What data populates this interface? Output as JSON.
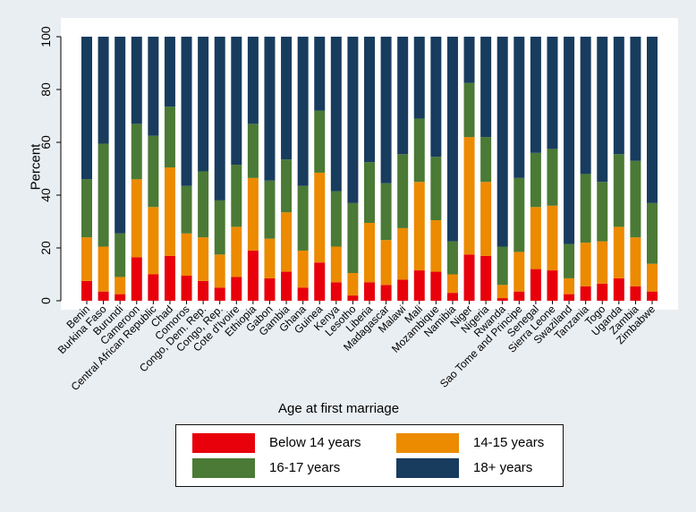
{
  "chart_data": {
    "type": "bar",
    "stacked": true,
    "title": "",
    "xlabel": "Age at first marriage",
    "ylabel": "Percent",
    "ylim": [
      0,
      100
    ],
    "yticks": [
      0,
      20,
      40,
      60,
      80,
      100
    ],
    "grid": false,
    "legend_position": "bottom",
    "categories": [
      "Benin",
      "Burkina Faso",
      "Burundi",
      "Cameroon",
      "Central African Republic",
      "Chad",
      "Comoros",
      "Congo, Dem. Rep.",
      "Congo, Rep.",
      "Cote d'Ivoire",
      "Ethiopia",
      "Gabon",
      "Gambia",
      "Ghana",
      "Guinea",
      "Kenya",
      "Lesotho",
      "Liberia",
      "Madagascar",
      "Malawi",
      "Mali",
      "Mozambique",
      "Namibia",
      "Niger",
      "Nigeria",
      "Rwanda",
      "Sao Tome and Principe",
      "Senegal",
      "Sierra Leone",
      "Swaziland",
      "Tanzania",
      "Togo",
      "Uganda",
      "Zambia",
      "Zimbabwe"
    ],
    "series": [
      {
        "name": "Below 14 years",
        "color": "#e8000b",
        "values": [
          7.5,
          3.5,
          2.5,
          16.5,
          10,
          17,
          9.5,
          7.5,
          5,
          9,
          19,
          8.5,
          11,
          5,
          14.5,
          7,
          2,
          7,
          6,
          8,
          11.5,
          11,
          3,
          17.5,
          17,
          1,
          3.5,
          12,
          11.5,
          2.5,
          5.5,
          6.5,
          8.5,
          5.5,
          3.5
        ]
      },
      {
        "name": "14-15 years",
        "color": "#ec8a00",
        "values": [
          16.5,
          17,
          6.5,
          29.5,
          25.5,
          33.5,
          16,
          16.5,
          12.5,
          19,
          27.5,
          15,
          22.5,
          14,
          34,
          13.5,
          8.5,
          22.5,
          17,
          19.5,
          33.5,
          19.5,
          7,
          44.5,
          28,
          5,
          15,
          23.5,
          24.5,
          6,
          16.5,
          16,
          19.5,
          18.5,
          10.5
        ]
      },
      {
        "name": "16-17 years",
        "color": "#4a7a35",
        "values": [
          22,
          39,
          16.5,
          21,
          27,
          23,
          18,
          25,
          20.5,
          23.5,
          20.5,
          22,
          20,
          24.5,
          23.5,
          21,
          26.5,
          23,
          21.5,
          28,
          24,
          24,
          12.5,
          20.5,
          17,
          14.5,
          28,
          20.5,
          21.5,
          13,
          26,
          22.5,
          27.5,
          29,
          23
        ]
      },
      {
        "name": "18+ years",
        "color": "#183c5e",
        "values": [
          54,
          40.5,
          74.5,
          33,
          37.5,
          26.5,
          56.5,
          51,
          62,
          48.5,
          33,
          54.5,
          46.5,
          56.5,
          28,
          58.5,
          63,
          47.5,
          55.5,
          44.5,
          31,
          45.5,
          77.5,
          17.5,
          38,
          79.5,
          53.5,
          44,
          42.5,
          78.5,
          52,
          55,
          44.5,
          47,
          63
        ]
      }
    ]
  }
}
